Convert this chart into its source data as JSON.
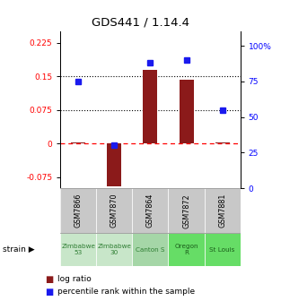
{
  "title": "GDS441 / 1.14.4",
  "samples": [
    "GSM7866",
    "GSM7870",
    "GSM7864",
    "GSM7872",
    "GSM7881"
  ],
  "strain_texts": [
    "Zimbabwe\n53",
    "Zimbabwe\n30",
    "Canton S",
    "Oregon\nR",
    "St Louis"
  ],
  "strain_bg": [
    "#c8e6c9",
    "#c8e6c9",
    "#a5d6a7",
    "#66dd66",
    "#66dd66"
  ],
  "strain_text_colors": [
    "#2e7d32",
    "#2e7d32",
    "#2e7d32",
    "#1a5c1a",
    "#1a5c1a"
  ],
  "log_ratios": [
    0.003,
    -0.095,
    0.165,
    0.143,
    0.003
  ],
  "percentile_ranks": [
    75,
    30,
    88,
    90,
    55
  ],
  "ylim_left": [
    -0.1,
    0.25
  ],
  "ylim_right": [
    0,
    110
  ],
  "yticks_left": [
    -0.075,
    0,
    0.075,
    0.15,
    0.225
  ],
  "ytick_labels_left": [
    "-0.075",
    "0",
    "0.075",
    "0.15",
    "0.225"
  ],
  "yticks_right": [
    0,
    25,
    50,
    75,
    100
  ],
  "ytick_labels_right": [
    "0",
    "25",
    "50",
    "75",
    "100%"
  ],
  "bar_color": "#8b1a1a",
  "dot_color": "#1a1aee",
  "hline_y": [
    0.075,
    0.15
  ],
  "zero_line_y": 0.0,
  "sample_cell_color": "#c8c8c8",
  "plot_bg": "#ffffff",
  "bar_width": 0.4
}
